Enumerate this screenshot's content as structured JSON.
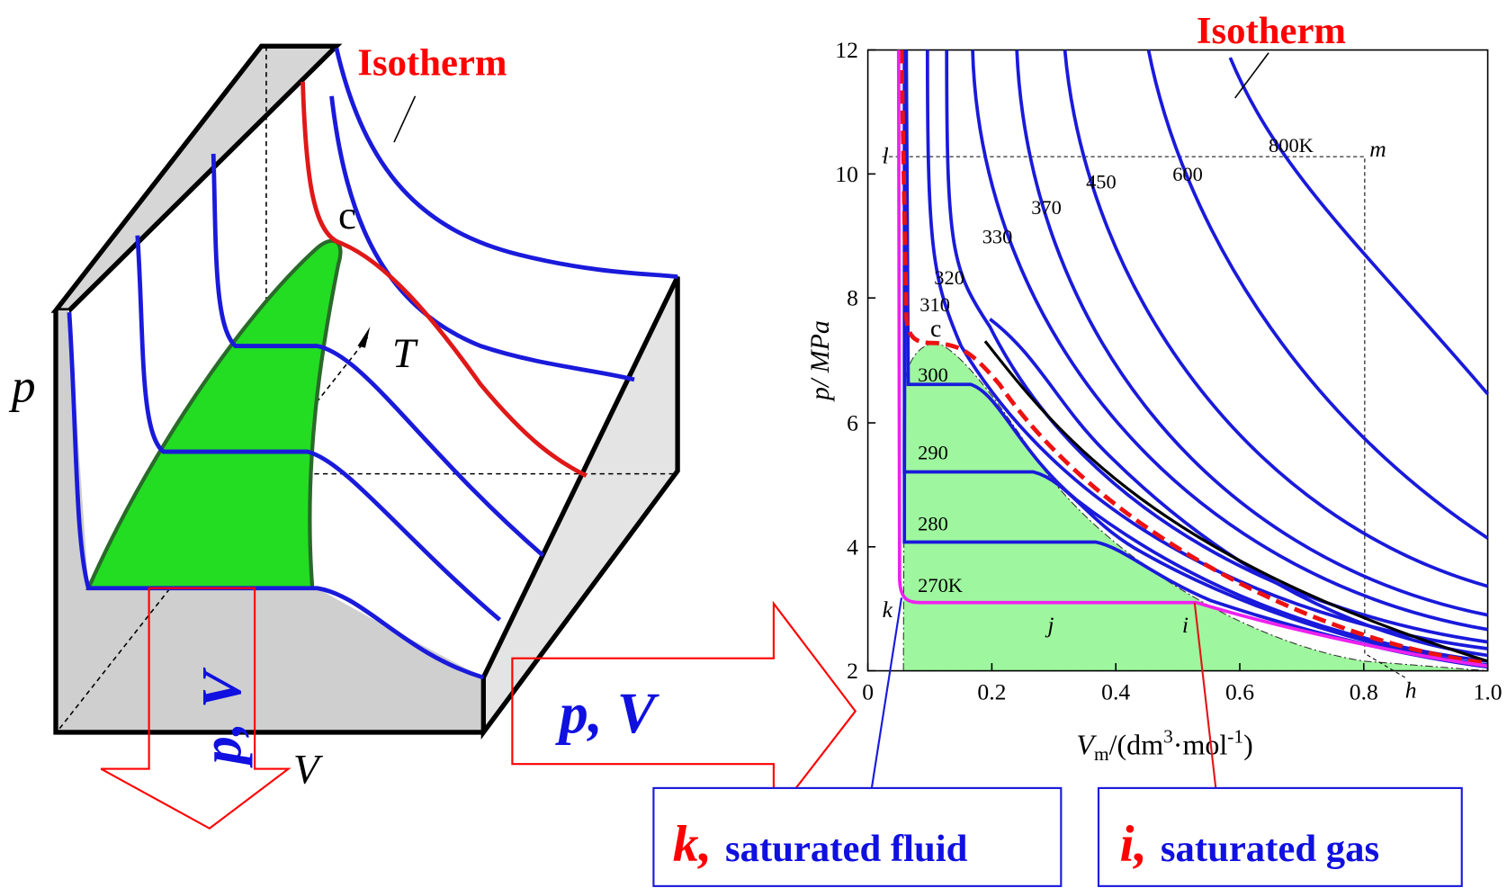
{
  "left": {
    "isotherm": "Isotherm",
    "critical": "c",
    "t_axis": "T",
    "p_axis": "p",
    "v_axis": "V",
    "arrow_down": "p, V"
  },
  "arrow_right": "p, V",
  "right": {
    "title": "Isotherm",
    "y_title": "p/ MPa",
    "x_title": {
      "symbol": "V",
      "sub": "m",
      "unit": "/(dm",
      "power": "3",
      "unit2": "·mol",
      "power2": "-1",
      "close": ")"
    },
    "yticks": [
      "12",
      "10",
      "8",
      "6",
      "4",
      "2"
    ],
    "xticks": [
      "0",
      "0.2",
      "0.4",
      "0.6",
      "0.8",
      "1.0"
    ],
    "isotherms": [
      "800K",
      "600",
      "450",
      "370",
      "330",
      "320",
      "310",
      "300",
      "290",
      "280",
      "270K"
    ],
    "critical": "c",
    "points": [
      "l",
      "m",
      "k",
      "j",
      "i",
      "h"
    ]
  },
  "callouts": [
    {
      "letter": "k,",
      "text": "saturated fluid"
    },
    {
      "letter": "i,",
      "text": "saturated gas"
    }
  ]
}
